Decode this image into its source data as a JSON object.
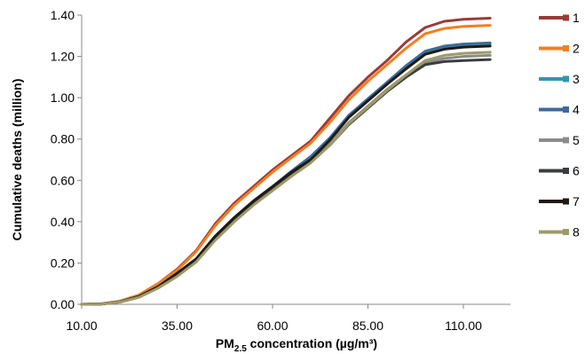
{
  "chart_data": {
    "type": "line",
    "title": "",
    "xlabel_main": "PM",
    "xlabel_sub": "2.5",
    "xlabel_rest": " concentration (µg/m³)",
    "ylabel": "Cumulative deaths (million)",
    "xlim": [
      10,
      120
    ],
    "ylim": [
      0,
      1.4
    ],
    "x_ticks": [
      10,
      35,
      60,
      85,
      110
    ],
    "x_tick_labels": [
      "10.00",
      "35.00",
      "60.00",
      "85.00",
      "110.00"
    ],
    "y_ticks": [
      0,
      0.2,
      0.4,
      0.6,
      0.8,
      1.0,
      1.2,
      1.4
    ],
    "y_tick_labels": [
      "0.00",
      "0.20",
      "0.40",
      "0.60",
      "0.80",
      "1.00",
      "1.20",
      "1.40"
    ],
    "grid": false,
    "legend_position": "right",
    "x": [
      10,
      15,
      20,
      25,
      30,
      35,
      40,
      45,
      50,
      55,
      60,
      65,
      70,
      75,
      80,
      85,
      90,
      95,
      100,
      105,
      110,
      117
    ],
    "series": [
      {
        "name": "1",
        "color": "#9B3B36",
        "values": [
          0,
          0.002,
          0.015,
          0.045,
          0.1,
          0.17,
          0.26,
          0.39,
          0.49,
          0.57,
          0.65,
          0.72,
          0.79,
          0.9,
          1.01,
          1.1,
          1.18,
          1.27,
          1.34,
          1.37,
          1.38,
          1.385
        ]
      },
      {
        "name": "2",
        "color": "#F07F22",
        "values": [
          0,
          0.002,
          0.015,
          0.045,
          0.1,
          0.165,
          0.255,
          0.38,
          0.48,
          0.56,
          0.64,
          0.71,
          0.78,
          0.88,
          0.99,
          1.08,
          1.16,
          1.24,
          1.31,
          1.335,
          1.345,
          1.35
        ]
      },
      {
        "name": "3",
        "color": "#3396AE",
        "values": [
          0,
          0.001,
          0.012,
          0.038,
          0.085,
          0.15,
          0.22,
          0.33,
          0.42,
          0.5,
          0.57,
          0.64,
          0.71,
          0.8,
          0.91,
          0.99,
          1.07,
          1.15,
          1.22,
          1.245,
          1.255,
          1.26
        ]
      },
      {
        "name": "4",
        "color": "#3F6B9A",
        "values": [
          0,
          0.001,
          0.012,
          0.038,
          0.085,
          0.15,
          0.22,
          0.33,
          0.42,
          0.5,
          0.57,
          0.645,
          0.715,
          0.805,
          0.915,
          0.995,
          1.075,
          1.155,
          1.225,
          1.25,
          1.26,
          1.265
        ]
      },
      {
        "name": "5",
        "color": "#8C8C8C",
        "values": [
          0,
          0.001,
          0.011,
          0.035,
          0.08,
          0.14,
          0.21,
          0.32,
          0.41,
          0.49,
          0.56,
          0.63,
          0.69,
          0.78,
          0.88,
          0.96,
          1.04,
          1.11,
          1.17,
          1.19,
          1.2,
          1.205
        ]
      },
      {
        "name": "6",
        "color": "#3A3D40",
        "values": [
          0,
          0.001,
          0.011,
          0.035,
          0.08,
          0.14,
          0.21,
          0.32,
          0.41,
          0.49,
          0.56,
          0.63,
          0.69,
          0.77,
          0.87,
          0.95,
          1.03,
          1.1,
          1.16,
          1.175,
          1.18,
          1.185
        ]
      },
      {
        "name": "7",
        "color": "#1F1A14",
        "values": [
          0,
          0.001,
          0.012,
          0.038,
          0.085,
          0.15,
          0.22,
          0.33,
          0.42,
          0.5,
          0.57,
          0.64,
          0.7,
          0.795,
          0.905,
          0.985,
          1.065,
          1.14,
          1.21,
          1.235,
          1.245,
          1.25
        ]
      },
      {
        "name": "8",
        "color": "#9E9A67",
        "values": [
          0,
          0.001,
          0.011,
          0.034,
          0.078,
          0.135,
          0.205,
          0.31,
          0.4,
          0.48,
          0.55,
          0.62,
          0.685,
          0.77,
          0.875,
          0.955,
          1.035,
          1.11,
          1.18,
          1.205,
          1.215,
          1.22
        ]
      }
    ]
  }
}
